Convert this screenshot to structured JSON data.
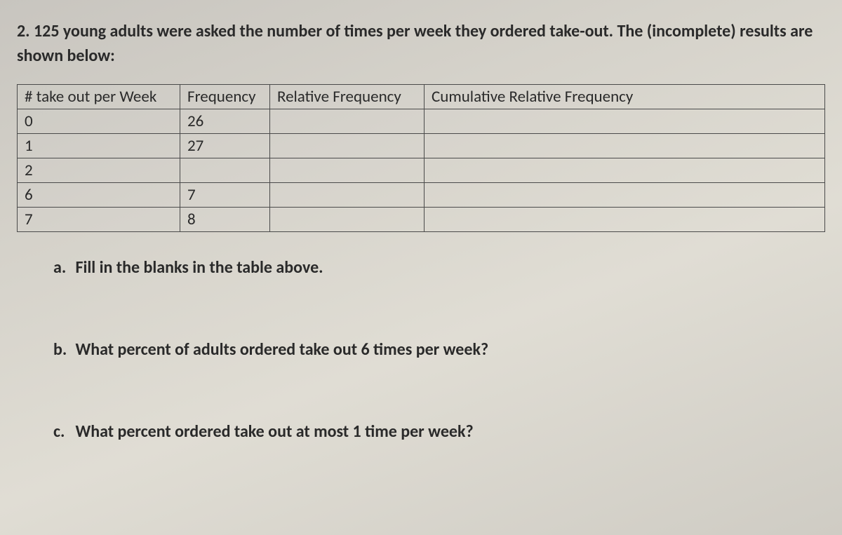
{
  "question": {
    "number": "2.",
    "text": "125 young adults were asked the number of times per week they ordered take-out. The (incomplete) results are shown below:"
  },
  "table": {
    "columns": [
      "# take out per Week",
      "Frequency",
      "Relative Frequency",
      "Cumulative Relative Frequency"
    ],
    "col_widths": [
      "232px",
      "128px",
      "220px",
      "auto"
    ],
    "rows": [
      [
        "0",
        "26",
        "",
        ""
      ],
      [
        "1",
        "27",
        "",
        ""
      ],
      [
        "2",
        "",
        "",
        ""
      ],
      [
        "6",
        "7",
        "",
        ""
      ],
      [
        "7",
        "8",
        "",
        ""
      ]
    ],
    "border_color": "#4a4a4a",
    "fontsize": 23
  },
  "subquestions": {
    "a": {
      "label": "a.",
      "text": "Fill in the blanks in the table above."
    },
    "b": {
      "label": "b.",
      "text": "What percent of adults ordered take out 6 times per week?"
    },
    "c": {
      "label": "c.",
      "text": "What percent ordered take out at most 1 time per week?"
    }
  },
  "styling": {
    "background_gradient": [
      "#c8c5bf",
      "#d5d2ca",
      "#e0ddd4",
      "#cfccc4"
    ],
    "text_color": "#2a2a2a",
    "prompt_fontsize": 24,
    "prompt_fontweight": 600,
    "subq_fontsize": 24
  }
}
